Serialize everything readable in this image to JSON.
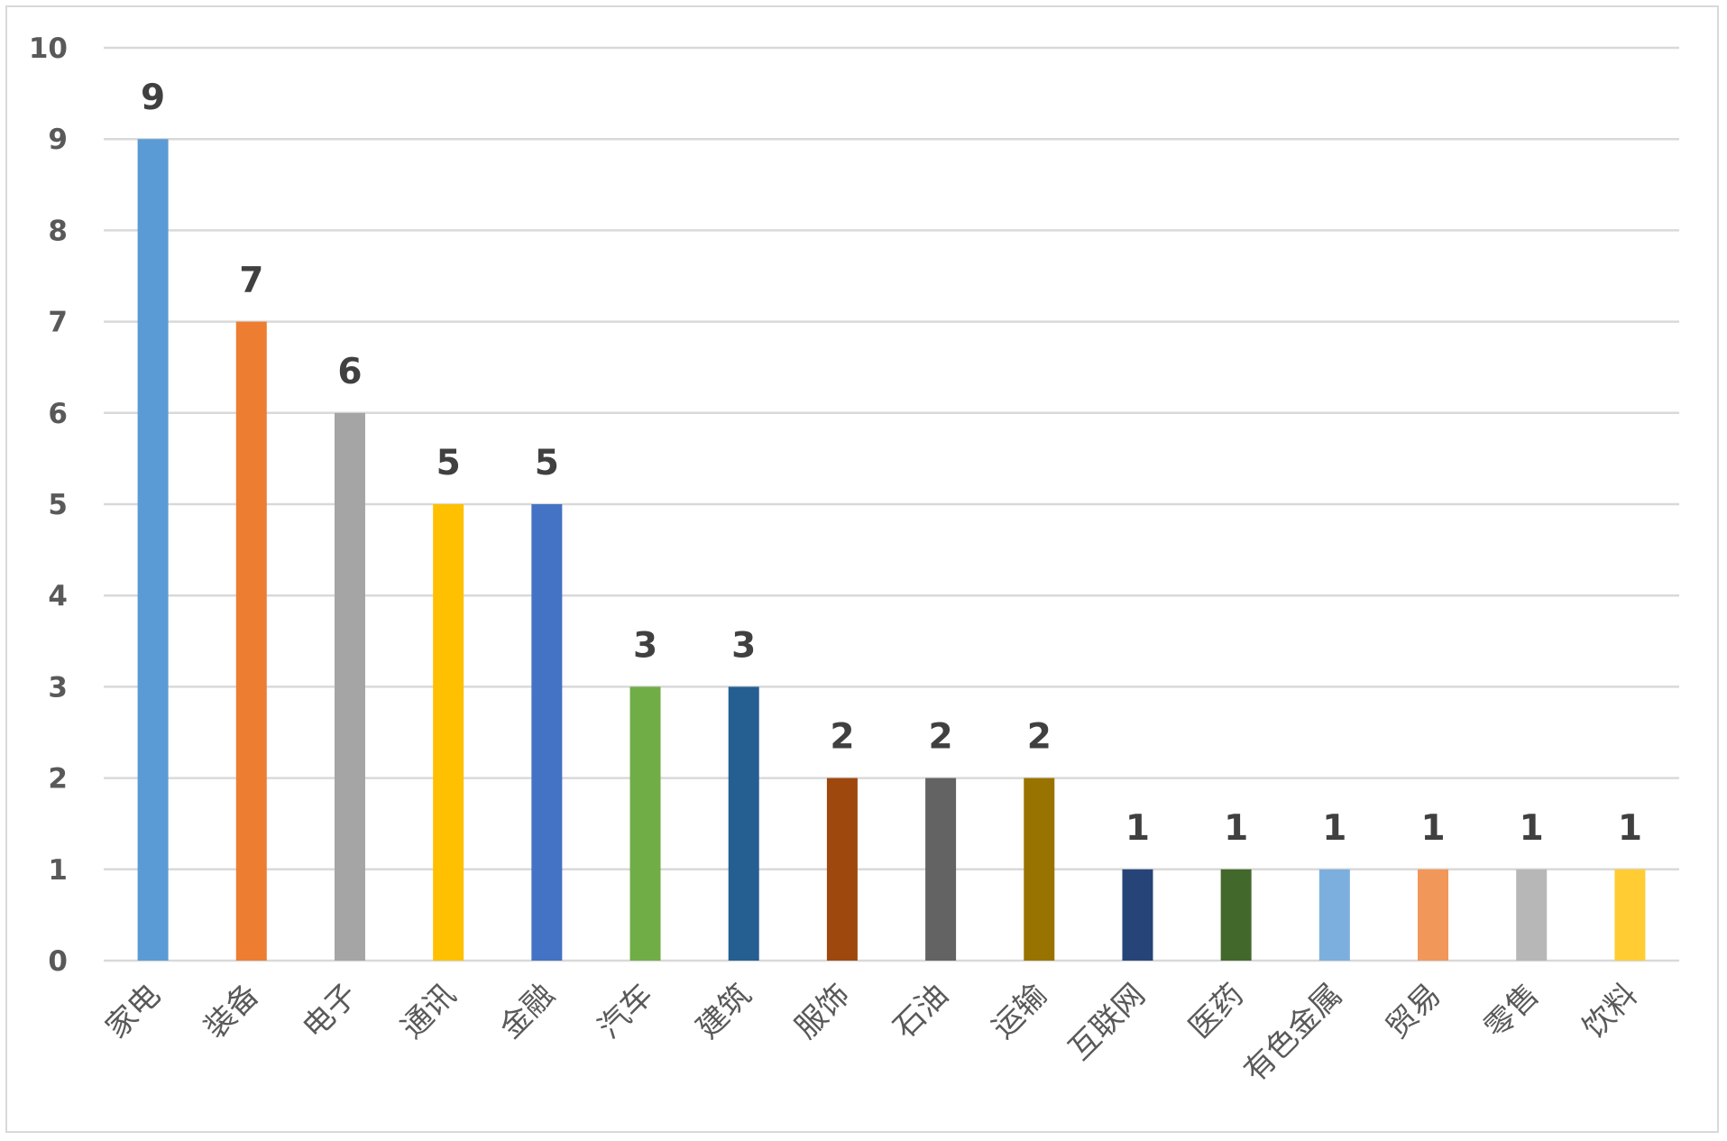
{
  "chart_data": {
    "type": "bar",
    "title": "",
    "xlabel": "",
    "ylabel": "",
    "ylim": [
      0,
      10
    ],
    "y_ticks": [
      "0",
      "1",
      "2",
      "3",
      "4",
      "5",
      "6",
      "7",
      "8",
      "9",
      "10"
    ],
    "grid": true,
    "legend": "none",
    "categories": [
      "家电",
      "装备",
      "电子",
      "通讯",
      "金融",
      "汽车",
      "建筑",
      "服饰",
      "石油",
      "运输",
      "互联网",
      "医药",
      "有色金属",
      "贸易",
      "零售",
      "饮料"
    ],
    "values": [
      9,
      7,
      6,
      5,
      5,
      3,
      3,
      2,
      2,
      2,
      1,
      1,
      1,
      1,
      1,
      1
    ],
    "colors": [
      "#5b9bd5",
      "#ed7d31",
      "#a5a5a5",
      "#ffc000",
      "#4472c4",
      "#70ad47",
      "#255e91",
      "#9e480e",
      "#636363",
      "#997300",
      "#264478",
      "#43682b",
      "#7cafdd",
      "#f1975a",
      "#b7b7b7",
      "#ffcd33"
    ],
    "gridline_color": "#d9d9d9",
    "axis_color": "#d9d9d9"
  }
}
